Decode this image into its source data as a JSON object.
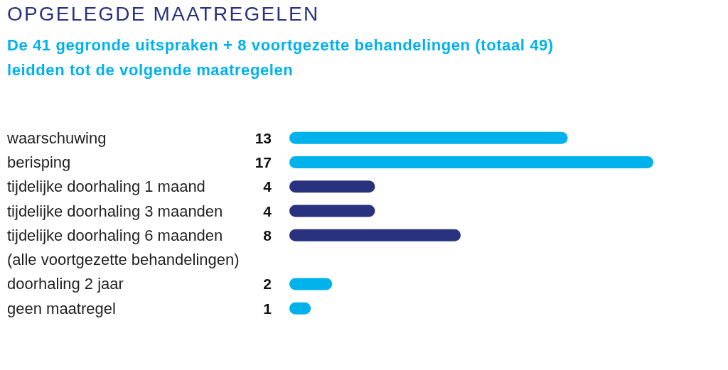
{
  "chart_data": {
    "type": "bar",
    "orientation": "horizontal",
    "title": "OPGELEGDE MAATREGELEN",
    "subtitle": "De 41 gegronde uitspraken + 8 voortgezette behandelingen (totaal 49) leidden tot de volgende maatregelen",
    "categories": [
      "waarschuwing",
      "berisping",
      "tijdelijke doorhaling 1 maand",
      "tijdelijke doorhaling 3 maanden",
      "tijdelijke doorhaling 6 maanden",
      "(alle voortgezette behandelingen)",
      "doorhaling 2 jaar",
      "geen maatregel"
    ],
    "values": [
      13,
      17,
      4,
      4,
      8,
      null,
      2,
      1
    ],
    "colors": [
      "#00b2ec",
      "#00b2ec",
      "#29327f",
      "#29327f",
      "#29327f",
      null,
      "#00b2ec",
      "#00b2ec"
    ],
    "data_labels": true
  }
}
